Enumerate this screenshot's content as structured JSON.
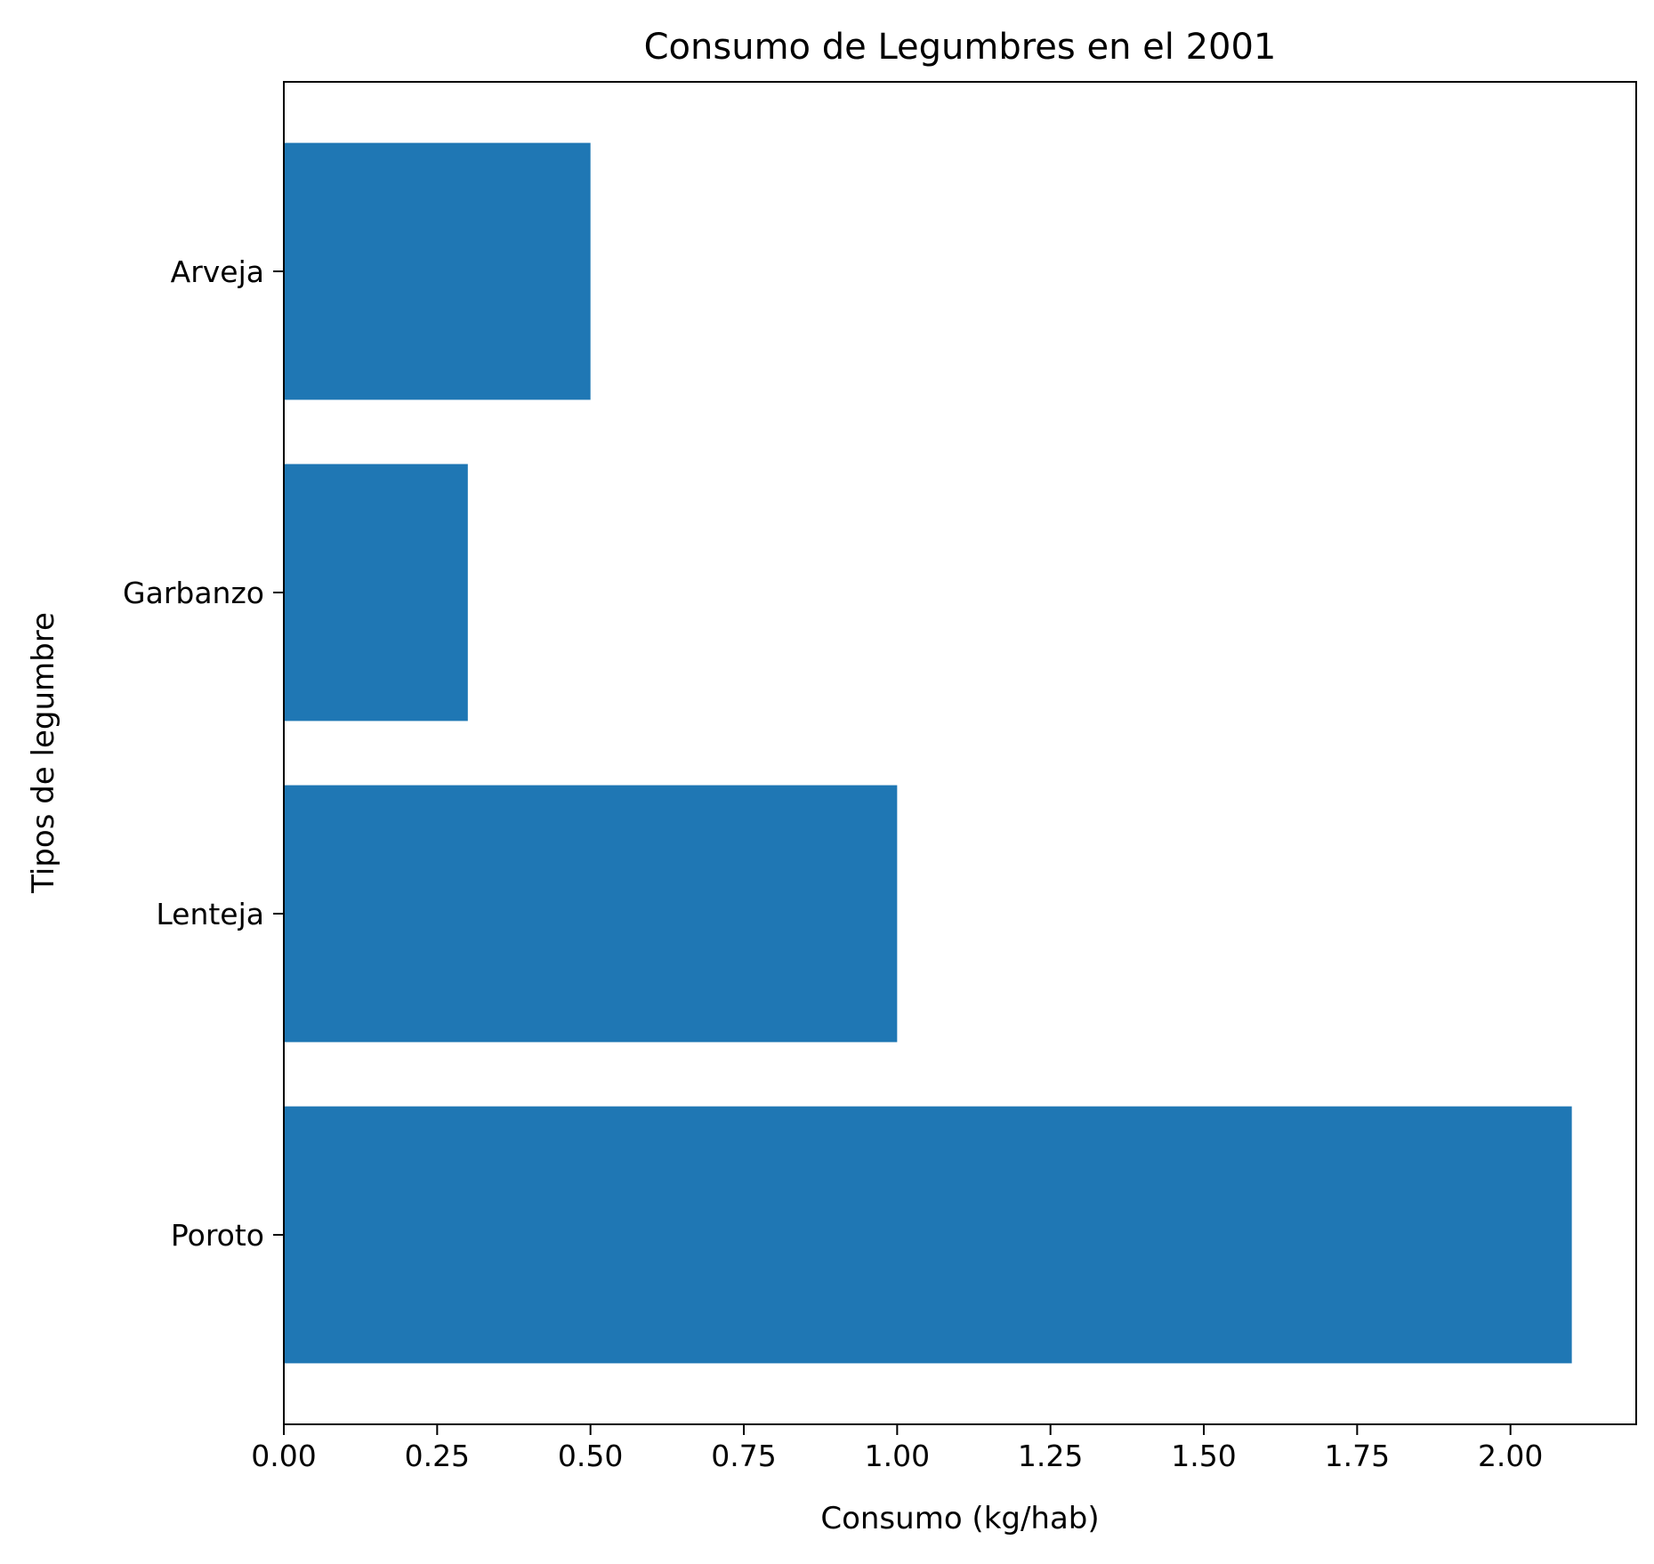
{
  "chart_data": {
    "type": "bar",
    "orientation": "horizontal",
    "title": "Consumo de Legumbres en el 2001",
    "xlabel": "Consumo (kg/hab)",
    "ylabel": "Tipos de legumbre",
    "categories": [
      "Poroto",
      "Lenteja",
      "Garbanzo",
      "Arveja"
    ],
    "values": [
      2.1,
      1.0,
      0.3,
      0.5
    ],
    "xlim": [
      0,
      2.205
    ],
    "xticks": [
      0.0,
      0.25,
      0.5,
      0.75,
      1.0,
      1.25,
      1.5,
      1.75,
      2.0
    ],
    "xtick_labels": [
      "0.00",
      "0.25",
      "0.50",
      "0.75",
      "1.00",
      "1.25",
      "1.50",
      "1.75",
      "2.00"
    ],
    "bar_color": "#1f77b4",
    "grid": false,
    "legend": false
  }
}
